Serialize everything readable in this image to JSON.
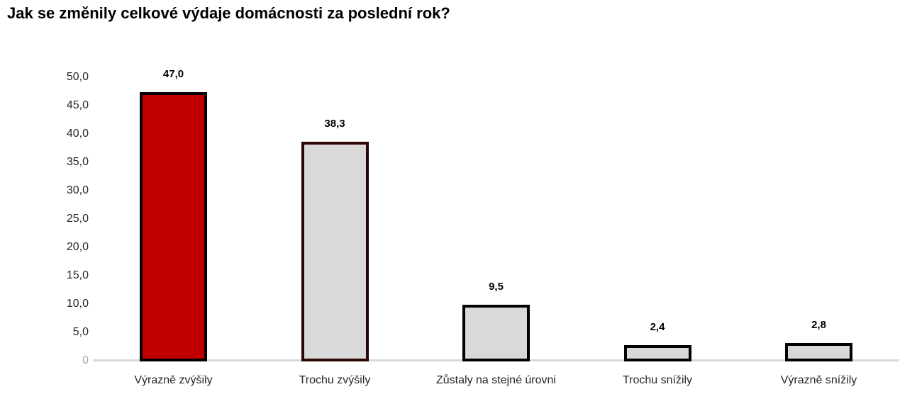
{
  "chart_data": {
    "type": "bar",
    "title": "Jak se změnily celkové výdaje domácnosti za poslední rok?",
    "categories": [
      "Výrazně zvýšily",
      "Trochu zvýšily",
      "Zůstaly na stejné úrovni",
      "Trochu snížily",
      "Výrazně snížily"
    ],
    "values": [
      47.0,
      38.3,
      9.5,
      2.4,
      2.8
    ],
    "value_labels": [
      "47,0",
      "38,3",
      "9,5",
      "2,4",
      "2,8"
    ],
    "bar_colors": [
      "#c00000",
      "#d9d9d9",
      "#d9d9d9",
      "#d9d9d9",
      "#d9d9d9"
    ],
    "bar_border_colors": [
      "#000000",
      "#2d0505",
      "#000000",
      "#000000",
      "#000000"
    ],
    "xlabel": "",
    "ylabel": "",
    "ylim": [
      0,
      50
    ],
    "ytick_values": [
      0,
      5,
      10,
      15,
      20,
      25,
      30,
      35,
      40,
      45,
      50
    ],
    "ytick_labels": [
      "0",
      "5,0",
      "10,0",
      "15,0",
      "20,0",
      "25,0",
      "30,0",
      "35,0",
      "40,0",
      "45,0",
      "50,0"
    ],
    "grid": false,
    "legend": null,
    "colors": {
      "title_text": "#000000",
      "axis_label_text": "#262626",
      "zero_tick_text": "#a6a6a6",
      "axis_line": "#d9d9d9",
      "highlight_bar": "#c00000",
      "default_bar": "#d9d9d9",
      "bar_border": "#000000"
    }
  }
}
